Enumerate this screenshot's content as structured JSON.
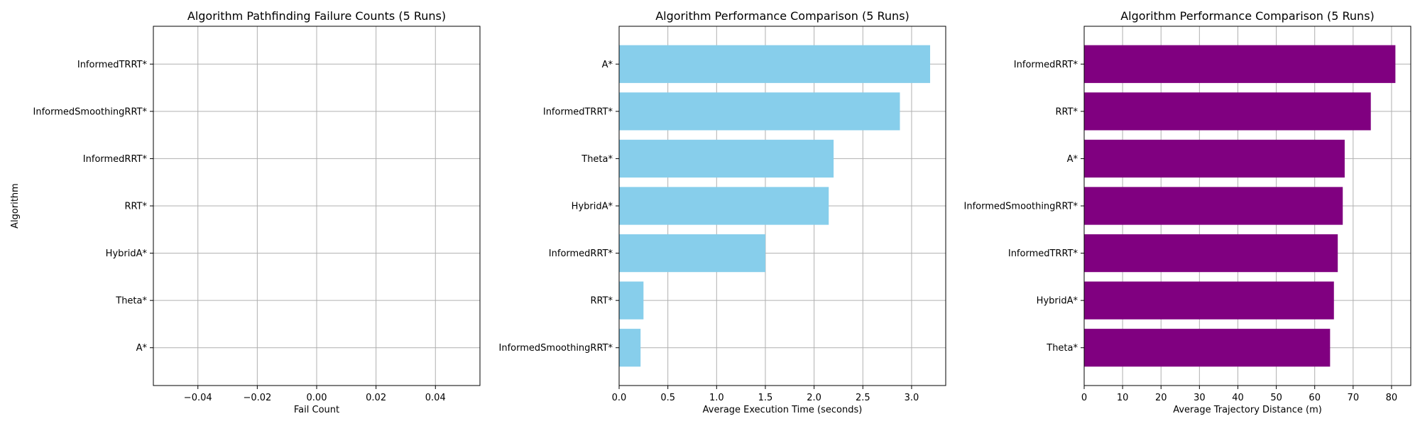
{
  "chart_data": [
    {
      "type": "bar",
      "orientation": "horizontal",
      "title": "Algorithm Pathfinding Failure Counts (5 Runs)",
      "xlabel": "Fail Count",
      "ylabel": "Algorithm",
      "categories": [
        "A*",
        "Theta*",
        "HybridA*",
        "RRT*",
        "InformedRRT*",
        "InformedSmoothingRRT*",
        "InformedTRRT*"
      ],
      "values": [
        0,
        0,
        0,
        0,
        0,
        0,
        0
      ],
      "xlim": [
        -0.055,
        0.055
      ],
      "xticks": [
        -0.04,
        -0.02,
        0.0,
        0.02,
        0.04
      ],
      "xtick_labels": [
        "−0.04",
        "−0.02",
        "0.00",
        "0.02",
        "0.04"
      ],
      "color": "#87ceeb",
      "grid": true
    },
    {
      "type": "bar",
      "orientation": "horizontal",
      "title": "Algorithm Performance Comparison (5 Runs)",
      "xlabel": "Average Execution Time (seconds)",
      "ylabel": "",
      "categories": [
        "InformedSmoothingRRT*",
        "RRT*",
        "InformedRRT*",
        "HybridA*",
        "Theta*",
        "InformedTRRT*",
        "A*"
      ],
      "values": [
        0.22,
        0.25,
        1.5,
        2.15,
        2.2,
        2.88,
        3.19
      ],
      "xlim": [
        0,
        3.35
      ],
      "xticks": [
        0,
        0.5,
        1.0,
        1.5,
        2.0,
        2.5,
        3.0
      ],
      "xtick_labels": [
        "0.0",
        "0.5",
        "1.0",
        "1.5",
        "2.0",
        "2.5",
        "3.0"
      ],
      "color": "#87ceeb",
      "grid": true
    },
    {
      "type": "bar",
      "orientation": "horizontal",
      "title": "Algorithm Performance Comparison (5 Runs)",
      "xlabel": "Average Trajectory Distance (m)",
      "ylabel": "",
      "categories": [
        "Theta*",
        "HybridA*",
        "InformedTRRT*",
        "InformedSmoothingRRT*",
        "A*",
        "RRT*",
        "InformedRRT*"
      ],
      "values": [
        64,
        65,
        66,
        67.3,
        67.8,
        74.6,
        81
      ],
      "xlim": [
        0,
        85
      ],
      "xticks": [
        0,
        10,
        20,
        30,
        40,
        50,
        60,
        70,
        80
      ],
      "xtick_labels": [
        "0",
        "10",
        "20",
        "30",
        "40",
        "50",
        "60",
        "70",
        "80"
      ],
      "color": "#800080",
      "grid": true
    }
  ]
}
